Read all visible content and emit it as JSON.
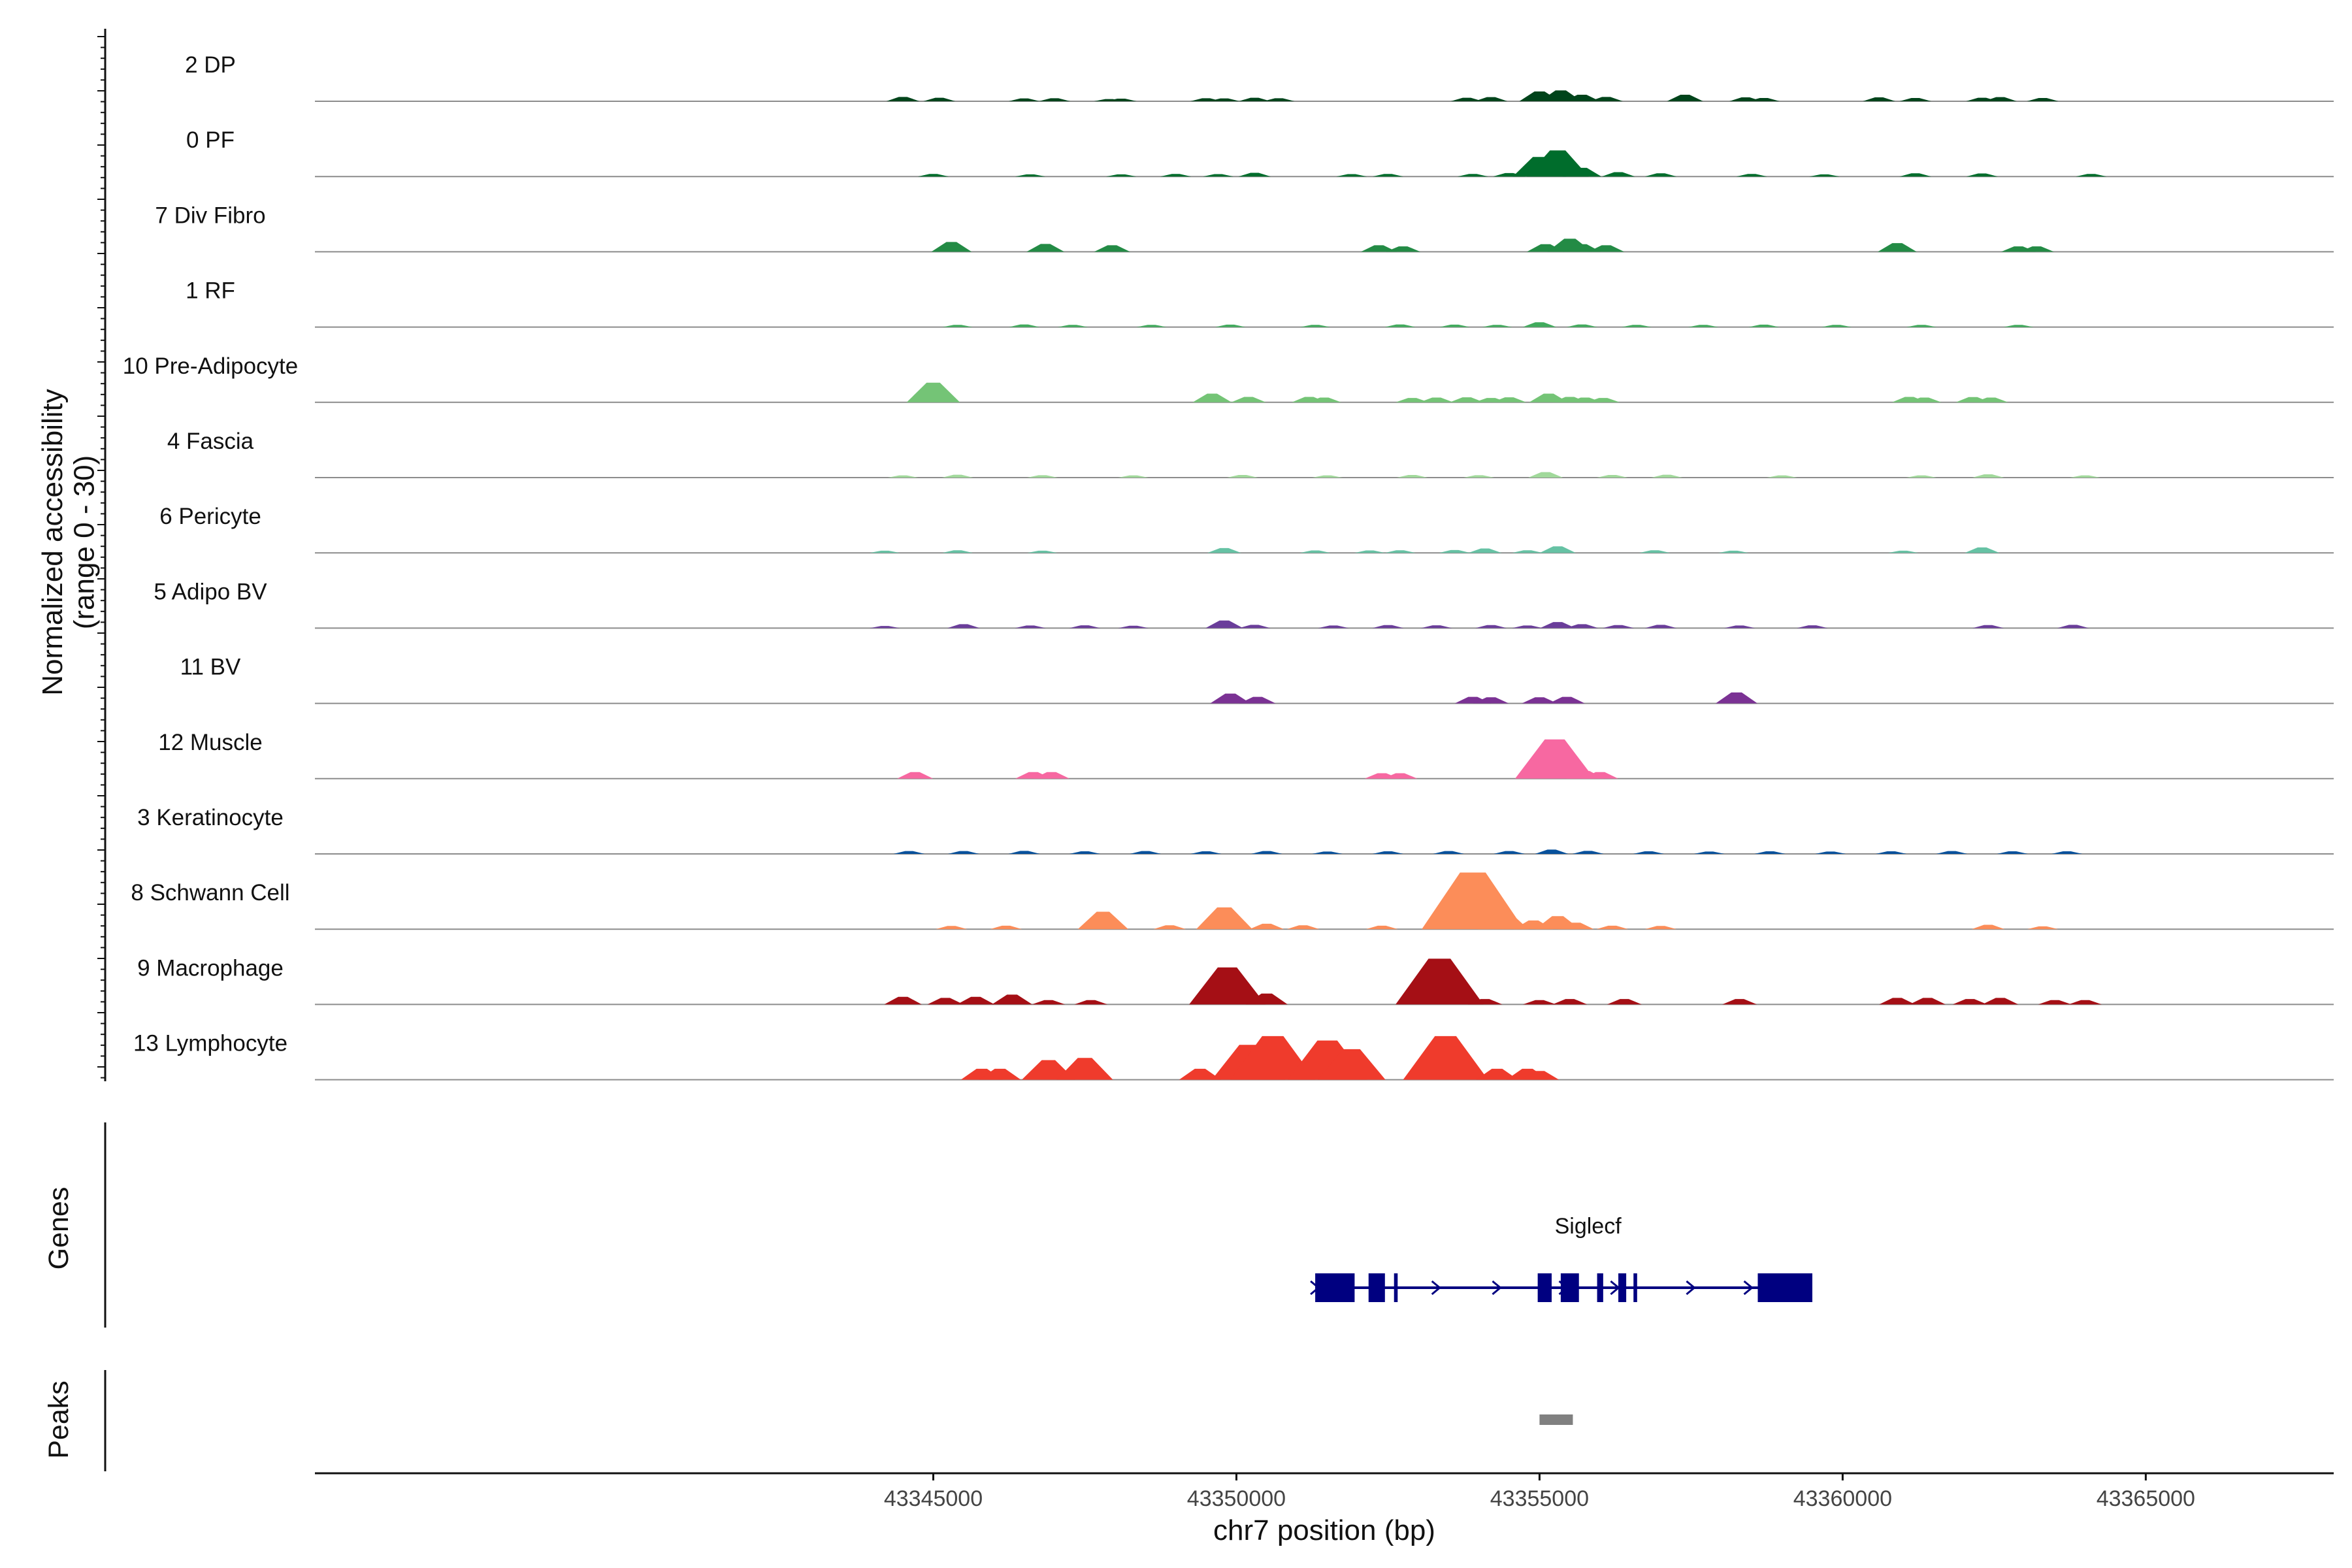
{
  "chart_data": {
    "type": "area",
    "ylabel": "Normalized accessibility\n(range 0 - 30)",
    "xlabel": "chr7 position (bp)",
    "xlim": [
      43334800,
      43368100
    ],
    "ylim": [
      0,
      30
    ],
    "x_ticks": [
      43345000,
      43350000,
      43355000,
      43360000,
      43365000
    ],
    "x_tick_labels": [
      "43345000",
      "43350000",
      "43355000",
      "43360000",
      "43365000"
    ],
    "tracks": [
      {
        "name": "2 DP",
        "color": "#00441b",
        "x": [
          43344500,
          43345100,
          43346500,
          43347000,
          43347900,
          43348100,
          43349500,
          43349800,
          43350300,
          43350700,
          43353800,
          43354200,
          43355000,
          43355350,
          43355700,
          43356100,
          43357400,
          43358400,
          43358700,
          43360600,
          43361200,
          43362300,
          43362600,
          43363300
        ],
        "values": [
          2,
          1.6,
          1.3,
          1.4,
          1,
          1.2,
          1.4,
          1.3,
          1.6,
          1.4,
          1.6,
          1.9,
          4.5,
          5,
          3,
          2,
          3,
          1.8,
          1.5,
          1.8,
          1.5,
          1.6,
          1.9,
          1.5
        ]
      },
      {
        "name": "0 PF",
        "color": "#006d2c",
        "x": [
          43345000,
          43346600,
          43348100,
          43349000,
          43349700,
          43350300,
          43351900,
          43352500,
          43353900,
          43354500,
          43355000,
          43355300,
          43355700,
          43356300,
          43357000,
          43358500,
          43359700,
          43361200,
          43362300,
          43364100
        ],
        "values": [
          1.2,
          1,
          1,
          1.2,
          1.1,
          1.7,
          1.1,
          1.2,
          1.2,
          1.6,
          9,
          12,
          4,
          2,
          1.5,
          1.2,
          1,
          1.5,
          1.4,
          1.2
        ]
      },
      {
        "name": "7 Div Fibro",
        "color": "#238b45",
        "x": [
          43345300,
          43346850,
          43347950,
          43352350,
          43352750,
          43355100,
          43355500,
          43355700,
          43356100,
          43360900,
          43362900,
          43363200
        ],
        "values": [
          4.5,
          3.6,
          3,
          3,
          2.5,
          3.5,
          6,
          3.5,
          3,
          4,
          2.5,
          2.5
        ]
      },
      {
        "name": "1 RF",
        "color": "#41ab5d",
        "x": [
          43345400,
          43346500,
          43347300,
          43348600,
          43349900,
          43351300,
          43352700,
          43353600,
          43354300,
          43355000,
          43355700,
          43356600,
          43357700,
          43358700,
          43359900,
          43361300,
          43362900
        ],
        "values": [
          1,
          1.2,
          1,
          1,
          1.1,
          1,
          1.2,
          1.1,
          1,
          2.2,
          1.2,
          1,
          1,
          1.1,
          1,
          1,
          1
        ]
      },
      {
        "name": "10 Pre-Adipocyte",
        "color": "#74c476",
        "x": [
          43345000,
          43349600,
          43350200,
          43351200,
          43351450,
          43352900,
          43353300,
          43353800,
          43354200,
          43354500,
          43355150,
          43355500,
          43355750,
          43356050,
          43361100,
          43361350,
          43362150,
          43362450
        ],
        "values": [
          9,
          4,
          2.5,
          2.5,
          2.2,
          2,
          2.2,
          2.3,
          2,
          2.3,
          4,
          2.5,
          2.2,
          2,
          2.5,
          2.2,
          2.4,
          2.2
        ]
      },
      {
        "name": "4 Fascia",
        "color": "#a1d99b",
        "x": [
          43344500,
          43345400,
          43346800,
          43348300,
          43350100,
          43351500,
          43352900,
          43354000,
          43355100,
          43356200,
          43357100,
          43359000,
          43361300,
          43362400,
          43364000
        ],
        "values": [
          1,
          1.3,
          1.1,
          1,
          1.2,
          1,
          1.2,
          1.1,
          2.5,
          1.2,
          1.3,
          1,
          1,
          1.5,
          1
        ]
      },
      {
        "name": "6 Pericyte",
        "color": "#66c2a4",
        "x": [
          43344200,
          43345400,
          43346800,
          43349800,
          43351300,
          43352200,
          43352700,
          43353600,
          43354100,
          43354800,
          43355300,
          43356900,
          43358200,
          43361000,
          43362300
        ],
        "values": [
          1,
          1.2,
          1,
          2.2,
          1.1,
          1.1,
          1.2,
          1.3,
          2,
          1.2,
          3,
          1.2,
          1,
          1,
          2.5
        ]
      },
      {
        "name": "5 Adipo BV",
        "color": "#6a3d9a",
        "x": [
          43344200,
          43345500,
          43346600,
          43347500,
          43348300,
          43349800,
          43350300,
          43351600,
          43352500,
          43353300,
          43354200,
          43354800,
          43355300,
          43355700,
          43356300,
          43357000,
          43358300,
          43359500,
          43362400,
          43363800
        ],
        "values": [
          1,
          1.8,
          1.2,
          1.3,
          1.1,
          3.5,
          1.5,
          1.2,
          1.4,
          1.3,
          1.4,
          1.2,
          2.8,
          1.8,
          1.4,
          1.5,
          1.2,
          1.3,
          1.4,
          1.5
        ]
      },
      {
        "name": "11 BV",
        "color": "#7b3294",
        "x": [
          43349900,
          43350350,
          43353900,
          43354200,
          43355000,
          43355450,
          43358250
        ],
        "values": [
          4.5,
          3,
          3,
          2.8,
          2.8,
          3,
          5
        ]
      },
      {
        "name": "12 Muscle",
        "color": "#f768a1",
        "x": [
          43344700,
          43346650,
          43346950,
          43352400,
          43352700,
          43355250,
          43355750,
          43356000
        ],
        "values": [
          3,
          3,
          3,
          2.5,
          2.5,
          18,
          3.5,
          3
        ]
      },
      {
        "name": "3 Keratinocyte",
        "color": "#08519c",
        "x": [
          43344600,
          43345500,
          43346500,
          43347500,
          43348500,
          43349500,
          43350500,
          43351500,
          43352500,
          43353500,
          43354500,
          43355200,
          43355800,
          43356800,
          43357800,
          43358800,
          43359800,
          43360800,
          43361800,
          43362800,
          43363700
        ],
        "values": [
          1.3,
          1.3,
          1.4,
          1.2,
          1.3,
          1.2,
          1.3,
          1.1,
          1.2,
          1.3,
          1.3,
          2,
          1.4,
          1.2,
          1.1,
          1.2,
          1.1,
          1.2,
          1.3,
          1.2,
          1.2
        ]
      },
      {
        "name": "8 Schwann Cell",
        "color": "#fc8d59",
        "x": [
          43345300,
          43346200,
          43347800,
          43348900,
          43349800,
          43350500,
          43351100,
          43352400,
          43353900,
          43354400,
          43354900,
          43355300,
          43355600,
          43356200,
          43357000,
          43362400,
          43363300
        ],
        "values": [
          1.5,
          1.6,
          8,
          1.8,
          10,
          2.5,
          1.8,
          1.6,
          26,
          8,
          4,
          6,
          3,
          1.6,
          1.5,
          2,
          1.3
        ]
      },
      {
        "name": "9 Macrophage",
        "color": "#a50f15",
        "x": [
          43344500,
          43345200,
          43345700,
          43346300,
          43346900,
          43347600,
          43349850,
          43350500,
          43353350,
          43354100,
          43355000,
          43355500,
          43356400,
          43358300,
          43360900,
          43361400,
          43362100,
          43362600,
          43363500,
          43364000
        ],
        "values": [
          3.5,
          3,
          3.5,
          4.5,
          2,
          2,
          17,
          5,
          21,
          2.5,
          2,
          2.5,
          2.5,
          2.5,
          3,
          3,
          2.5,
          3,
          2,
          2
        ]
      },
      {
        "name": "13 Lymphocyte",
        "color": "#ef3b2c",
        "x": [
          43345800,
          43346100,
          43346900,
          43347500,
          43349400,
          43350200,
          43350600,
          43351500,
          43351900,
          43353450,
          43354300,
          43354800,
          43355000
        ],
        "values": [
          5,
          5,
          9,
          10,
          5,
          16,
          20,
          18,
          14,
          20,
          5,
          5,
          4
        ]
      }
    ],
    "genes": [
      {
        "name": "Siglecf",
        "strand": "+",
        "color": "#000080",
        "start": 43351300,
        "end": 43359500,
        "exons": [
          [
            43351300,
            43351950
          ],
          [
            43352180,
            43352450
          ],
          [
            43352600,
            43352660
          ],
          [
            43354970,
            43355200
          ],
          [
            43355350,
            43355650
          ],
          [
            43355950,
            43356050
          ],
          [
            43356300,
            43356430
          ],
          [
            43356550,
            43356610
          ],
          [
            43358600,
            43359500
          ]
        ]
      }
    ],
    "peaks": [
      {
        "start": 43355000,
        "end": 43355550,
        "color": "#808080"
      }
    ],
    "side_labels": {
      "genes": "Genes",
      "peaks": "Peaks"
    },
    "grid": false,
    "legend": "none"
  }
}
